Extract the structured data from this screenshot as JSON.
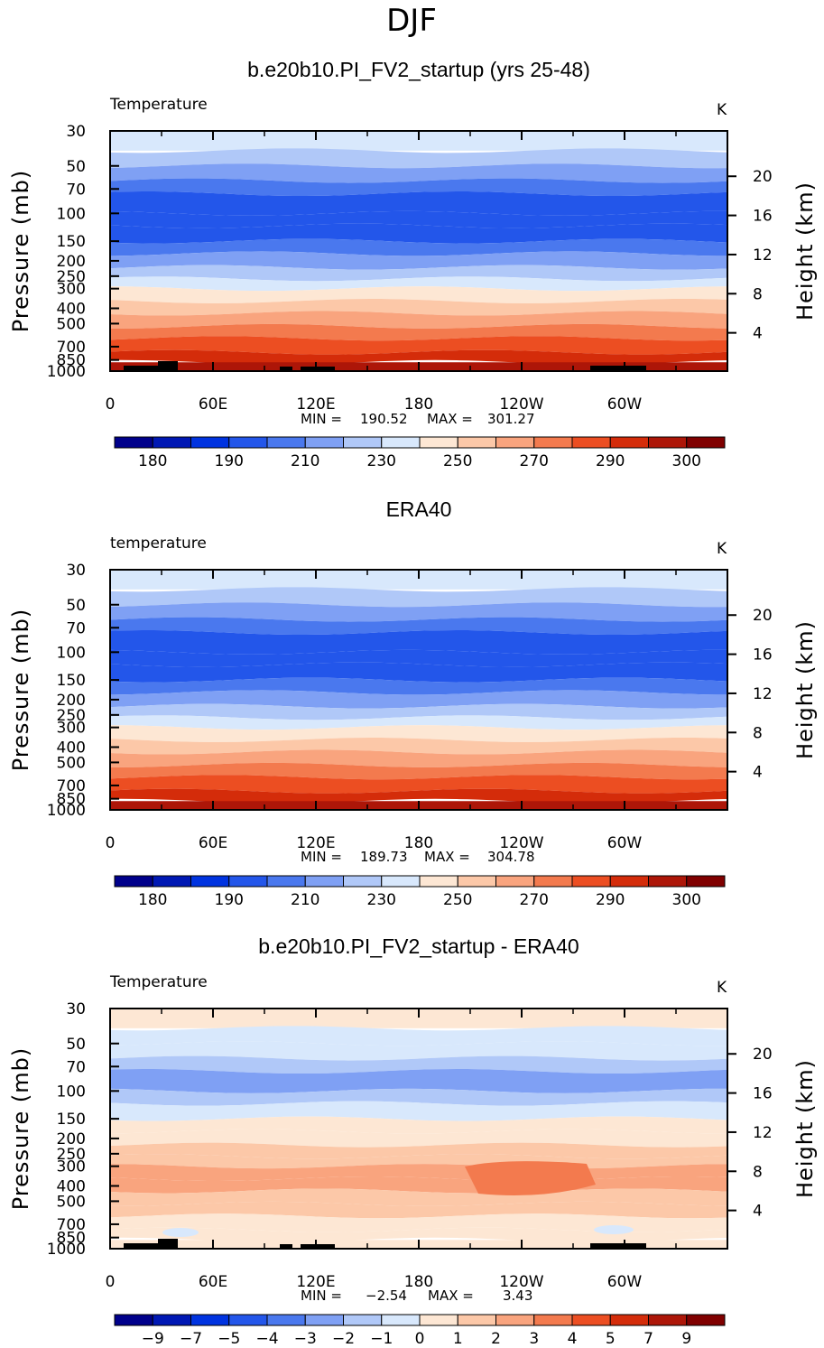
{
  "figure_title": "DJF",
  "colors": {
    "temperature_scale": [
      "#00008b",
      "#0018b4",
      "#0033e0",
      "#2356ea",
      "#4a78ee",
      "#7fa0f4",
      "#b0c8f8",
      "#d8e8fc",
      "#fde7d4",
      "#fcc8a8",
      "#f9a47e",
      "#f37a4e",
      "#ec4e22",
      "#d42c0a",
      "#ad1608",
      "#800000"
    ],
    "difference_scale": [
      "#00008b",
      "#0018b4",
      "#0033e0",
      "#2356ea",
      "#4a78ee",
      "#7fa0f4",
      "#b0c8f8",
      "#d8e8fc",
      "#fde7d4",
      "#fcc8a8",
      "#f9a47e",
      "#f37a4e",
      "#ec4e22",
      "#d42c0a",
      "#ad1608",
      "#800000"
    ],
    "topography": "#000000"
  },
  "chart_data": [
    {
      "type": "heatmap",
      "title": "b.e20b10.PI_FV2_startup (yrs 25-48)",
      "variable_label": "Temperature",
      "units": "K",
      "ylabel": "Pressure (mb)",
      "ylabel_right": "Height (km)",
      "pressure_ticks": [
        "30",
        "50",
        "70",
        "100",
        "150",
        "200",
        "250",
        "300",
        "400",
        "500",
        "700",
        "850",
        "1000"
      ],
      "height_ticks": [
        "20",
        "16",
        "12",
        "8",
        "4"
      ],
      "x_ticks": [
        "0",
        "60E",
        "120E",
        "180",
        "120W",
        "60W"
      ],
      "min_label": "MIN =",
      "min_value": "190.52",
      "max_label": "MAX =",
      "max_value": "301.27",
      "colorbar_labels": [
        "180",
        "190",
        "210",
        "230",
        "250",
        "270",
        "290",
        "300"
      ],
      "layer_colors": [
        7,
        6,
        5,
        4,
        3,
        3,
        3,
        4,
        5,
        6,
        7,
        8,
        9,
        10,
        11,
        12,
        13,
        14
      ],
      "topography": true
    },
    {
      "type": "heatmap",
      "title": "ERA40",
      "variable_label": "temperature",
      "units": "K",
      "ylabel": "Pressure (mb)",
      "ylabel_right": "Height (km)",
      "pressure_ticks": [
        "30",
        "50",
        "70",
        "100",
        "150",
        "200",
        "250",
        "300",
        "400",
        "500",
        "700",
        "850",
        "1000"
      ],
      "height_ticks": [
        "20",
        "16",
        "12",
        "8",
        "4"
      ],
      "x_ticks": [
        "0",
        "60E",
        "120E",
        "180",
        "120W",
        "60W"
      ],
      "min_label": "MIN =",
      "min_value": "189.73",
      "max_label": "MAX =",
      "max_value": "304.78",
      "colorbar_labels": [
        "180",
        "190",
        "210",
        "230",
        "250",
        "270",
        "290",
        "300"
      ],
      "layer_colors": [
        7,
        6,
        5,
        4,
        3,
        3,
        3,
        4,
        5,
        6,
        7,
        8,
        9,
        10,
        11,
        12,
        13,
        14
      ],
      "topography": false
    },
    {
      "type": "heatmap",
      "title": "b.e20b10.PI_FV2_startup - ERA40",
      "variable_label": "Temperature",
      "units": "K",
      "ylabel": "Pressure (mb)",
      "ylabel_right": "Height (km)",
      "pressure_ticks": [
        "30",
        "50",
        "70",
        "100",
        "150",
        "200",
        "250",
        "300",
        "400",
        "500",
        "700",
        "850",
        "1000"
      ],
      "height_ticks": [
        "20",
        "16",
        "12",
        "8",
        "4"
      ],
      "x_ticks": [
        "0",
        "60E",
        "120E",
        "180",
        "120W",
        "60W"
      ],
      "min_label": "MIN =",
      "min_value": "−2.54",
      "max_label": "MAX =",
      "max_value": "3.43",
      "colorbar_labels": [
        "−9",
        "−7",
        "−5",
        "−4",
        "−3",
        "−2",
        "−1",
        "0",
        "1",
        "2",
        "3",
        "4",
        "5",
        "7",
        "9"
      ],
      "layer_colors": [
        8,
        7,
        7,
        6,
        5,
        6,
        7,
        8,
        8,
        9,
        9,
        10,
        10,
        9,
        9,
        8,
        8,
        8
      ],
      "topography": true
    }
  ]
}
